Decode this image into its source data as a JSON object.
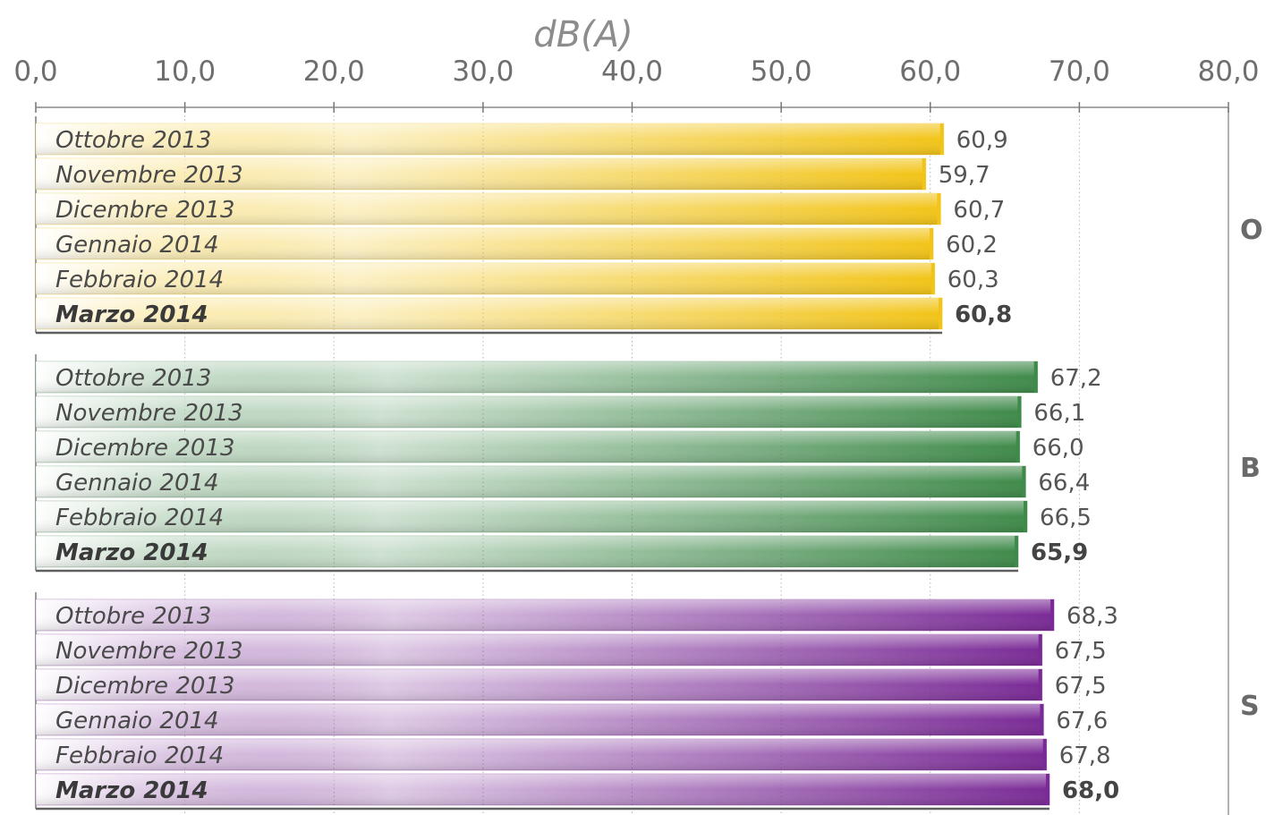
{
  "chart_data": {
    "type": "bar",
    "orientation": "horizontal",
    "xlabel": "dB(A)",
    "xlim": [
      0,
      80
    ],
    "x_ticks": [
      "0,0",
      "10,0",
      "20,0",
      "30,0",
      "40,0",
      "50,0",
      "60,0",
      "70,0",
      "80,0"
    ],
    "grid": true,
    "groups": [
      {
        "side_label": "O",
        "color": "#f2c418",
        "bars": [
          {
            "label": "Ottobre 2013",
            "value": 60.9,
            "value_text": "60,9",
            "bold": false
          },
          {
            "label": "Novembre 2013",
            "value": 59.7,
            "value_text": "59,7",
            "bold": false
          },
          {
            "label": "Dicembre 2013",
            "value": 60.7,
            "value_text": "60,7",
            "bold": false
          },
          {
            "label": "Gennaio 2014",
            "value": 60.2,
            "value_text": "60,2",
            "bold": false
          },
          {
            "label": "Febbraio 2014",
            "value": 60.3,
            "value_text": "60,3",
            "bold": false
          },
          {
            "label": "Marzo 2014",
            "value": 60.8,
            "value_text": "60,8",
            "bold": true
          }
        ]
      },
      {
        "side_label": "B",
        "color": "#3f8a4a",
        "bars": [
          {
            "label": "Ottobre 2013",
            "value": 67.2,
            "value_text": "67,2",
            "bold": false
          },
          {
            "label": "Novembre 2013",
            "value": 66.1,
            "value_text": "66,1",
            "bold": false
          },
          {
            "label": "Dicembre 2013",
            "value": 66.0,
            "value_text": "66,0",
            "bold": false
          },
          {
            "label": "Gennaio 2014",
            "value": 66.4,
            "value_text": "66,4",
            "bold": false
          },
          {
            "label": "Febbraio 2014",
            "value": 66.5,
            "value_text": "66,5",
            "bold": false
          },
          {
            "label": "Marzo 2014",
            "value": 65.9,
            "value_text": "65,9",
            "bold": true
          }
        ]
      },
      {
        "side_label": "S",
        "color": "#7a2a96",
        "bars": [
          {
            "label": "Ottobre 2013",
            "value": 68.3,
            "value_text": "68,3",
            "bold": false
          },
          {
            "label": "Novembre 2013",
            "value": 67.5,
            "value_text": "67,5",
            "bold": false
          },
          {
            "label": "Dicembre 2013",
            "value": 67.5,
            "value_text": "67,5",
            "bold": false
          },
          {
            "label": "Gennaio 2014",
            "value": 67.6,
            "value_text": "67,6",
            "bold": false
          },
          {
            "label": "Febbraio 2014",
            "value": 67.8,
            "value_text": "67,8",
            "bold": false
          },
          {
            "label": "Marzo 2014",
            "value": 68.0,
            "value_text": "68,0",
            "bold": true
          }
        ]
      }
    ]
  }
}
